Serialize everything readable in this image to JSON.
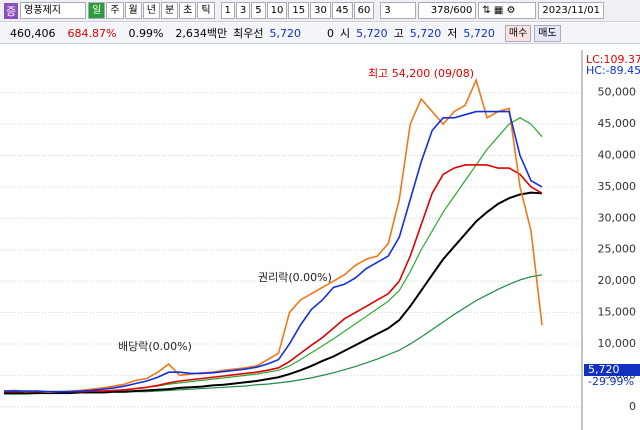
{
  "toolbar": {
    "badge": "증",
    "stock_name": "영풍제지",
    "periods": [
      "일",
      "주",
      "월",
      "년",
      "분",
      "초",
      "틱"
    ],
    "minutes": [
      "1",
      "3",
      "5",
      "10",
      "15",
      "30",
      "45",
      "60"
    ],
    "count_select": "3",
    "count": "378/600",
    "date": "2023/11/01"
  },
  "info": {
    "volume": "460,406",
    "turnover": "684.87%",
    "ratio": "0.99%",
    "amount": "2,634백만",
    "best_label": "최우선",
    "best_price": "5,720",
    "best_qty": "0",
    "open_label": "시",
    "open": "5,720",
    "high_label": "고",
    "high": "5,720",
    "low_label": "저",
    "low": "5,720",
    "buy": "매수",
    "sell": "매도"
  },
  "chart_data": {
    "type": "line",
    "categories": [
      null,
      null,
      null,
      null,
      null,
      null,
      null,
      null,
      null,
      null,
      null,
      null,
      null,
      null,
      null,
      null,
      null,
      null,
      null,
      null,
      null,
      null,
      null,
      null,
      null,
      null,
      null,
      null,
      null,
      null,
      null,
      null,
      null,
      null,
      null,
      null,
      null,
      null,
      null,
      null,
      null,
      null,
      null,
      null,
      null,
      null,
      null,
      null,
      null,
      null
    ],
    "series": [
      {
        "color": "#2ea82e",
        "values": [
          2300,
          2300,
          2300,
          2300,
          2300,
          2300,
          2300,
          2400,
          2400,
          2500,
          2600,
          2700,
          2900,
          3100,
          3300,
          3600,
          3800,
          4000,
          4200,
          4400,
          4600,
          4800,
          5000,
          5200,
          5500,
          5800,
          6500,
          7500,
          8600,
          9700,
          10800,
          12000,
          13200,
          14400,
          15600,
          16800,
          18500,
          21500,
          25000,
          28000,
          31000,
          33500,
          36000,
          38500,
          41000,
          43000,
          45000,
          46000,
          45000,
          43000
        ]
      },
      {
        "color": "#1e8c46",
        "values": [
          2000,
          2000,
          2000,
          2100,
          2100,
          2100,
          2100,
          2200,
          2200,
          2200,
          2300,
          2300,
          2400,
          2400,
          2500,
          2600,
          2700,
          2800,
          2900,
          3000,
          3100,
          3200,
          3300,
          3500,
          3600,
          3800,
          4000,
          4300,
          4600,
          5000,
          5400,
          5900,
          6400,
          7000,
          7600,
          8300,
          9000,
          10000,
          11100,
          12300,
          13500,
          14700,
          15800,
          16900,
          17800,
          18700,
          19500,
          20200,
          20700,
          21000
        ]
      },
      {
        "color": "#000000",
        "values": [
          2200,
          2200,
          2200,
          2200,
          2200,
          2200,
          2200,
          2300,
          2300,
          2300,
          2400,
          2400,
          2500,
          2600,
          2700,
          2800,
          3000,
          3100,
          3200,
          3400,
          3500,
          3700,
          3900,
          4100,
          4400,
          4700,
          5200,
          5800,
          6500,
          7300,
          8000,
          8900,
          9800,
          10700,
          11600,
          12500,
          13800,
          16000,
          18500,
          21000,
          23500,
          25500,
          27500,
          29500,
          31000,
          32300,
          33200,
          33800,
          34100,
          34000
        ]
      },
      {
        "color": "#e00000",
        "values": [
          2400,
          2400,
          2400,
          2400,
          2400,
          2400,
          2400,
          2400,
          2500,
          2500,
          2600,
          2700,
          2900,
          3100,
          3400,
          3800,
          4100,
          4300,
          4500,
          4700,
          4900,
          5100,
          5300,
          5500,
          5800,
          6200,
          7200,
          8500,
          9800,
          11000,
          12500,
          14000,
          15000,
          16000,
          17000,
          18000,
          20000,
          24000,
          29000,
          34000,
          37000,
          38000,
          38500,
          38500,
          38500,
          38000,
          38000,
          37000,
          35000,
          34000
        ]
      },
      {
        "color": "#f07818",
        "values": [
          2500,
          2600,
          2400,
          2500,
          2300,
          2400,
          2500,
          2600,
          2800,
          3000,
          3300,
          3600,
          4200,
          4500,
          5500,
          6800,
          5000,
          5200,
          5400,
          5500,
          5800,
          6000,
          6200,
          6500,
          7500,
          8500,
          15000,
          17000,
          18000,
          19000,
          20000,
          21000,
          22500,
          23500,
          24000,
          26000,
          33000,
          45000,
          49000,
          47000,
          45000,
          47000,
          48000,
          52000,
          46000,
          47000,
          47500,
          35000,
          28000,
          13000
        ]
      },
      {
        "color": "#1030e0",
        "values": [
          2500,
          2500,
          2500,
          2500,
          2400,
          2400,
          2400,
          2500,
          2600,
          2800,
          3000,
          3300,
          3700,
          4100,
          4700,
          5500,
          5500,
          5300,
          5300,
          5400,
          5600,
          5800,
          6000,
          6300,
          6800,
          7500,
          10000,
          13000,
          15500,
          17000,
          19000,
          19500,
          20500,
          22000,
          23000,
          24000,
          27000,
          33000,
          39000,
          44000,
          46000,
          46000,
          46500,
          47000,
          47000,
          47000,
          47000,
          40000,
          36000,
          35000
        ]
      }
    ],
    "ylim": [
      -3700,
      56800
    ],
    "yticks": [
      {
        "value": 0,
        "label": "0"
      },
      {
        "value": 5000,
        "label": "5,000"
      },
      {
        "value": 10000,
        "label": "10,000"
      },
      {
        "value": 15000,
        "label": "15,000"
      },
      {
        "value": 20000,
        "label": "20,000"
      },
      {
        "value": 25000,
        "label": "25,000"
      },
      {
        "value": 30000,
        "label": "30,000"
      },
      {
        "value": 35000,
        "label": "35,000"
      },
      {
        "value": 40000,
        "label": "40,000"
      },
      {
        "value": 45000,
        "label": "45,000"
      },
      {
        "value": 50000,
        "label": "50,000"
      }
    ],
    "grid": true,
    "lc_label": "LC:109.37",
    "hc_label": "HC:-89.45",
    "high_note": "최고 54,200 (09/08)",
    "dividend_note": "배당락(0.00%)",
    "rights_note": "권리락(0.00%)",
    "price_label": "5,720",
    "change_label": "-29.99%"
  }
}
